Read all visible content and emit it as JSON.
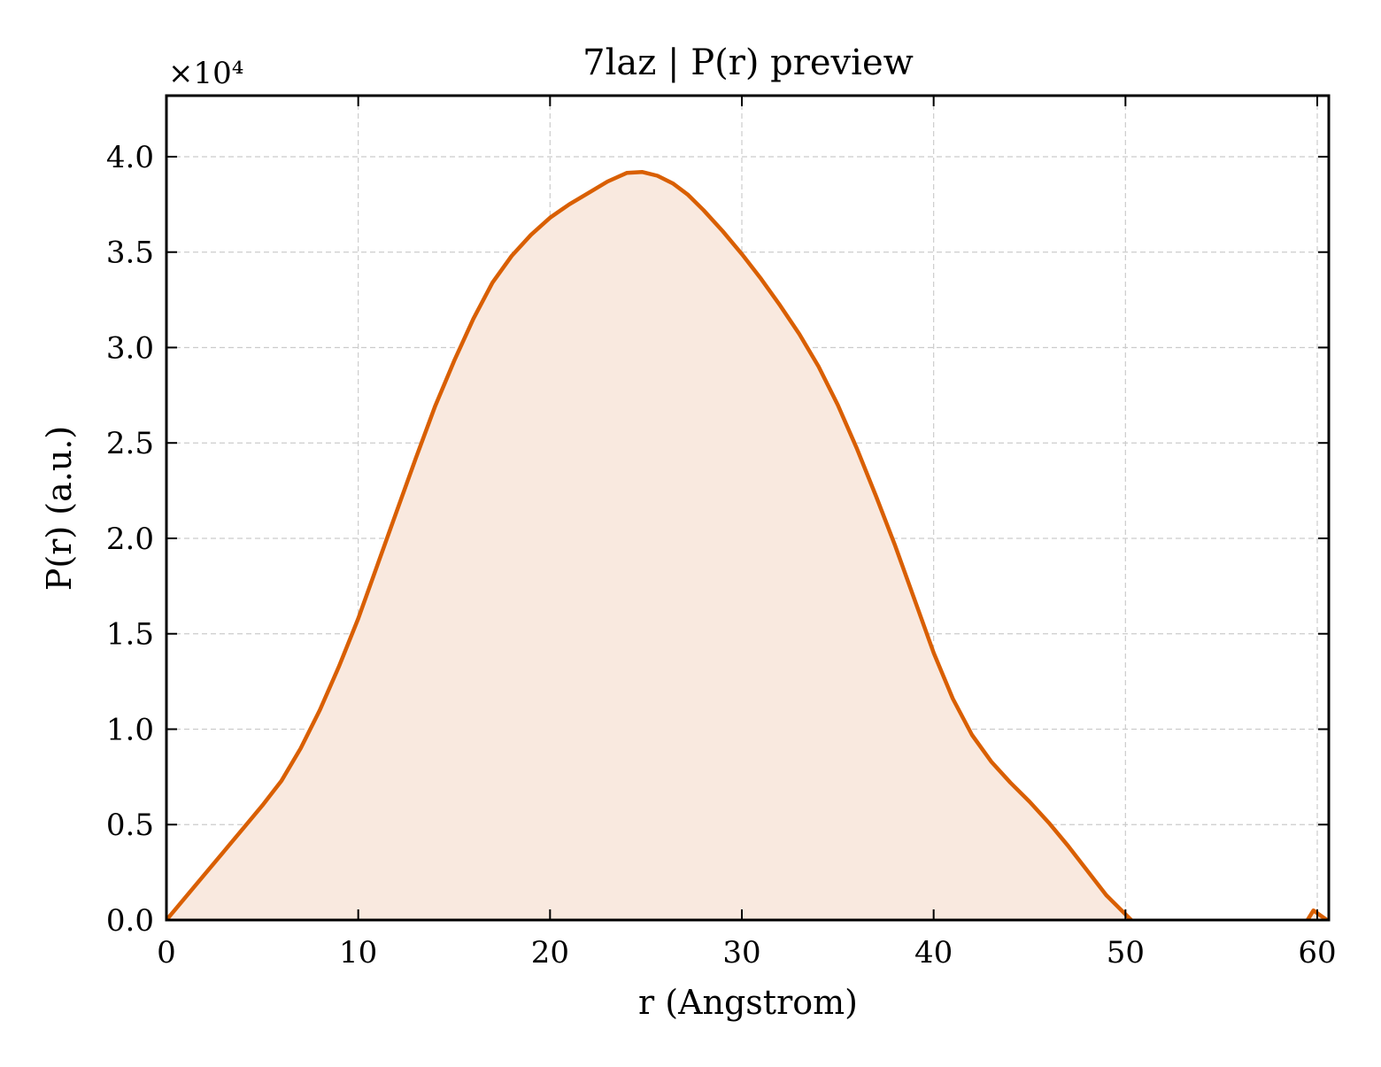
{
  "chart_data": {
    "type": "area",
    "title": "7laz | P(r) preview",
    "xlabel": "r (Angstrom)",
    "ylabel": "P(r) (a.u.)",
    "y_offset_label": "×10⁴",
    "y_scale_factor": 10000,
    "xlim": [
      0,
      60.6
    ],
    "ylim": [
      0,
      43200
    ],
    "x_ticks": [
      0,
      10,
      20,
      30,
      40,
      50,
      60
    ],
    "x_tick_labels": [
      "0",
      "10",
      "20",
      "30",
      "40",
      "50",
      "60"
    ],
    "y_ticks": [
      0,
      5000,
      10000,
      15000,
      20000,
      25000,
      30000,
      35000,
      40000
    ],
    "y_tick_labels": [
      "0.0",
      "0.5",
      "1.0",
      "1.5",
      "2.0",
      "2.5",
      "3.0",
      "3.5",
      "4.0"
    ],
    "grid": true,
    "line_color": "#d95f02",
    "fill_color": "#f9e9df",
    "series": [
      {
        "x": [
          0,
          2.0,
          4.0,
          5.0,
          6.0,
          7.0,
          8.0,
          9.0,
          10.0,
          11.0,
          12.0,
          13.0,
          14.0,
          15.0,
          16.0,
          17.0,
          18.0,
          19.0,
          20.0,
          21.0,
          22.0,
          23.0,
          24.0,
          24.8,
          25.6,
          26.4,
          27.2,
          28.0,
          29.0,
          30.0,
          31.0,
          32.0,
          33.0,
          34.0,
          35.0,
          36.0,
          37.0,
          38.0,
          39.0,
          40.0,
          41.0,
          42.0,
          43.0,
          44.0,
          45.0,
          46.0,
          47.0,
          48.0,
          49.0,
          50.0,
          51.0,
          52.0,
          53.0,
          54.0,
          55.0,
          56.0,
          57.0,
          58.0,
          59.0,
          59.8,
          60.5
        ],
        "y": [
          0,
          2400,
          4800,
          6000,
          7300,
          9000,
          11000,
          13300,
          15800,
          18600,
          21400,
          24200,
          26900,
          29300,
          31500,
          33400,
          34800,
          35900,
          36800,
          37500,
          38100,
          38700,
          39150,
          39200,
          39000,
          38600,
          38000,
          37200,
          36100,
          34900,
          33600,
          32200,
          30700,
          29000,
          27000,
          24700,
          22200,
          19600,
          16800,
          14000,
          11600,
          9700,
          8300,
          7200,
          6200,
          5100,
          3900,
          2600,
          1300,
          300,
          -700,
          -1200,
          -1300,
          -1300,
          -1400,
          -1800,
          -2500,
          -2600,
          -800,
          500,
          0
        ]
      }
    ]
  }
}
